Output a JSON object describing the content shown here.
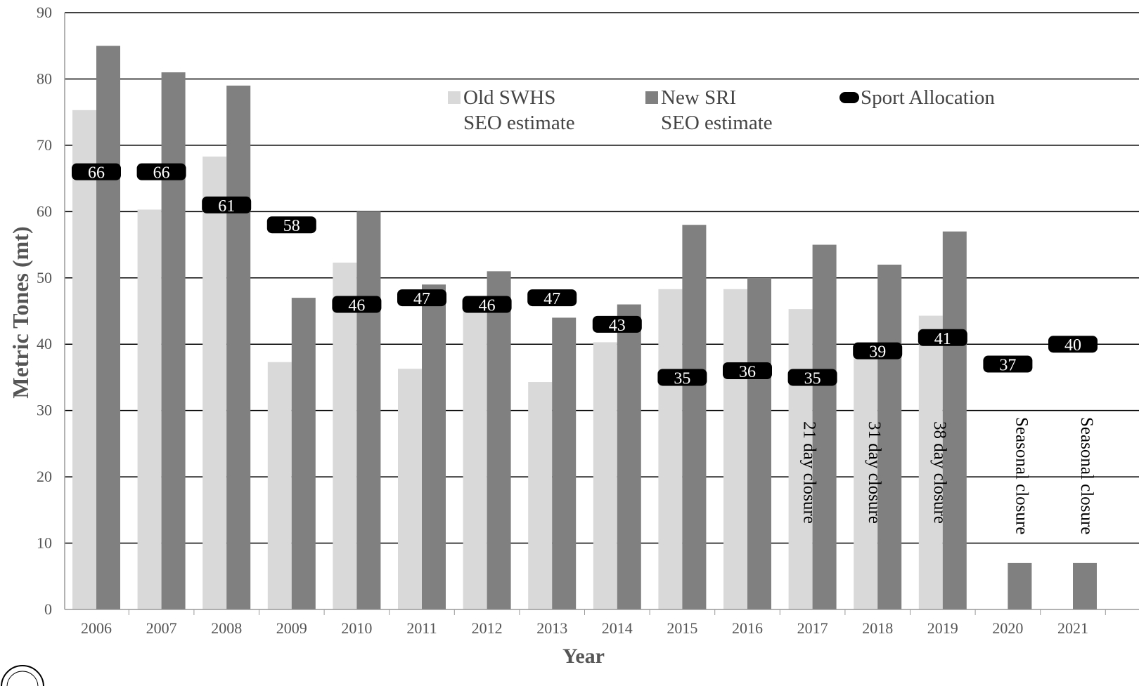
{
  "chart_data": {
    "type": "bar",
    "xlabel": "Year",
    "ylabel": "Metric Tones (mt)",
    "ylim": [
      0,
      90
    ],
    "yticks": [
      0,
      10,
      20,
      30,
      40,
      50,
      60,
      70,
      80,
      90
    ],
    "grid": true,
    "legend_position": "top",
    "categories": [
      "2006",
      "2007",
      "2008",
      "2009",
      "2010",
      "2011",
      "2012",
      "2013",
      "2014",
      "2015",
      "2016",
      "2017",
      "2018",
      "2019",
      "2020",
      "2021"
    ],
    "series": [
      {
        "name": "Old SWHS SEO estimate",
        "kind": "bar",
        "color": "#d9d9d9",
        "values": [
          75.3,
          60.3,
          68.3,
          37.3,
          52.3,
          36.3,
          46.3,
          34.3,
          40.3,
          48.3,
          48.3,
          45.3,
          39,
          44.3,
          null,
          null
        ]
      },
      {
        "name": "New SRI SEO estimate",
        "kind": "bar",
        "color": "#808080",
        "values": [
          85,
          81,
          79,
          47,
          60,
          49,
          51,
          44,
          46,
          58,
          50,
          55,
          52,
          57,
          7,
          7
        ]
      },
      {
        "name": "Sport Allocation",
        "kind": "marker",
        "color": "#000000",
        "values": [
          66,
          66,
          61,
          58,
          46,
          47,
          46,
          47,
          43,
          35,
          36,
          35,
          39,
          41,
          37,
          40
        ]
      }
    ],
    "legend": [
      {
        "line1": "Old SWHS",
        "line2": "SEO estimate",
        "color": "#d9d9d9"
      },
      {
        "line1": "New SRI",
        "line2": "SEO estimate",
        "color": "#808080"
      },
      {
        "line1": "Sport Allocation",
        "line2": "",
        "color": "#000000"
      }
    ],
    "annotations": [
      {
        "category": "2017",
        "text": "21 day closure"
      },
      {
        "category": "2018",
        "text": "31 day closure"
      },
      {
        "category": "2019",
        "text": "38 day closure"
      },
      {
        "category": "2020",
        "text": "Seasonal closure"
      },
      {
        "category": "2021",
        "text": "Seasonal closure"
      }
    ]
  }
}
